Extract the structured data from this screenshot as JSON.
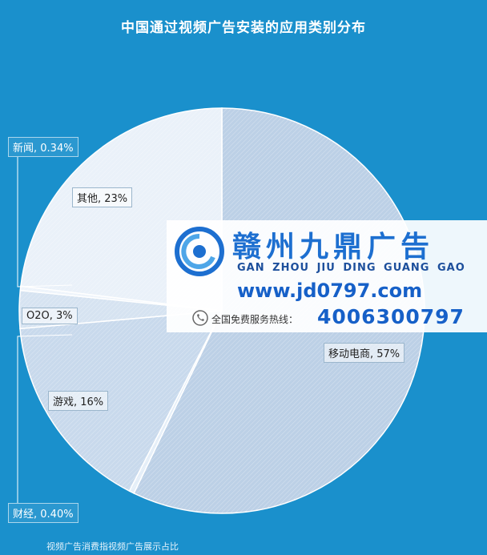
{
  "chart_data": {
    "type": "pie",
    "title": "中国通过视频广告安装的应用类别分布",
    "slices": [
      {
        "label": "移动电商, 57%",
        "name": "移动电商",
        "value": 57
      },
      {
        "label": "财经, 0.40%",
        "name": "财经",
        "value": 0.4
      },
      {
        "label": "游戏, 16%",
        "name": "游戏",
        "value": 16
      },
      {
        "label": "O2O, 3%",
        "name": "O2O",
        "value": 3
      },
      {
        "label": "新闻, 0.34%",
        "name": "新闻",
        "value": 0.34
      },
      {
        "label": "其他, 23%",
        "name": "其他",
        "value": 23
      }
    ],
    "colors": [
      "#bcd0e6",
      "#e4eef8",
      "#c8d9ec",
      "#d6e3f1",
      "#eef4fb",
      "#eaf1f9"
    ],
    "footnote": "视频广告消费指视频广告展示占比"
  },
  "watermark": {
    "brand": "赣州九鼎广告",
    "pinyin": "GAN ZHOU JIU DING GUANG GAO",
    "url": "www.jd0797.com",
    "hotline_label": "全国免费服务热线：",
    "hotline": "4006300797"
  }
}
